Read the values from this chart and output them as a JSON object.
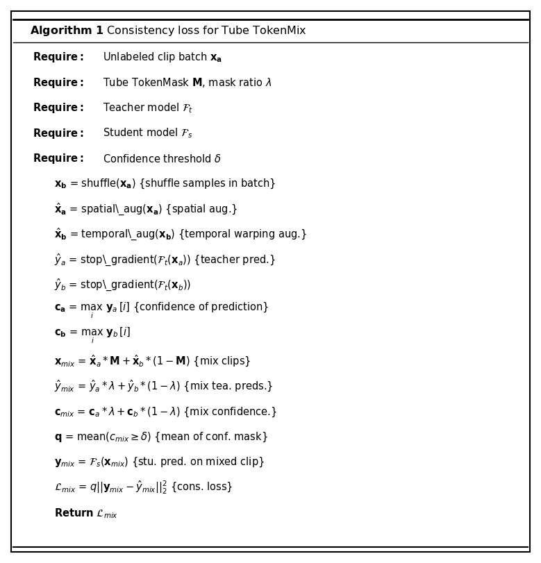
{
  "title": "Algorithm 1 Consistency loss for Tube TokenMix",
  "bg_color": "#ffffff",
  "border_color": "#000000",
  "fig_width": 7.79,
  "fig_height": 8.11,
  "dpi": 100,
  "requires": [
    "Unlabeled clip batch $\\mathbf{x_a}$",
    "Tube TokenMask $\\mathbf{M}$, mask ratio $\\lambda$",
    "Teacher model $\\mathcal{F}_t$",
    "Student model $\\mathcal{F}_s$",
    "Confidence threshold $\\delta$"
  ],
  "steps": [
    "$\\mathbf{x_b}$ = shuffle$(\\mathbf{x_a})$ {shuffle samples in batch}",
    "$\\hat{\\mathbf{x}}_\\mathbf{a}$ = spatial\\_aug$(\\mathbf{x_a})$ {spatial aug.}",
    "$\\hat{\\mathbf{x}}_\\mathbf{b}$ = temporal\\_aug$(\\mathbf{x_b})$ {temporal warping aug.}",
    "$\\hat{y}_a$ = stop\\_gradient$(\\mathcal{F}_t(\\mathbf{x}_a))$ {teacher pred.}",
    "$\\hat{y}_b$ = stop\\_gradient$(\\mathcal{F}_t(\\mathbf{x}_b))$",
    "$\\mathbf{c_a}$ = $\\max_i$ $\\mathbf{y}_a[i]$ {confidence of prediction}",
    "$\\mathbf{c_b}$ = $\\max_i$ $\\mathbf{y}_b[i]$",
    "$\\mathbf{x}_{mix}$ = $\\hat{\\mathbf{x}}_a * \\mathbf{M} + \\hat{\\mathbf{x}}_b * (1 - \\mathbf{M})$ {mix clips}",
    "$\\hat{y}_{mix}$ = $\\hat{y}_a * \\lambda + \\hat{y}_b * (1 - \\lambda)$ {mix tea. preds.}",
    "$\\mathbf{c}_{mix}$ = $\\mathbf{c}_a * \\lambda + \\mathbf{c}_b * (1 - \\lambda)$ {mix confidence.}",
    "$\\mathbf{q}$ = mean$(c_{mix} \\geq \\delta)$ {mean of conf. mask}",
    "$\\mathbf{y}_{mix}$ = $\\mathcal{F}_s(\\mathbf{x}_{mix})$ {stu. pred. on mixed clip}",
    "$\\mathcal{L}_{mix}$ = $q||\\mathbf{y}_{mix} - \\hat{y}_{mix}||_2^2$ {cons. loss}",
    "\\textbf{Return} $\\mathcal{L}_{mix}$"
  ]
}
